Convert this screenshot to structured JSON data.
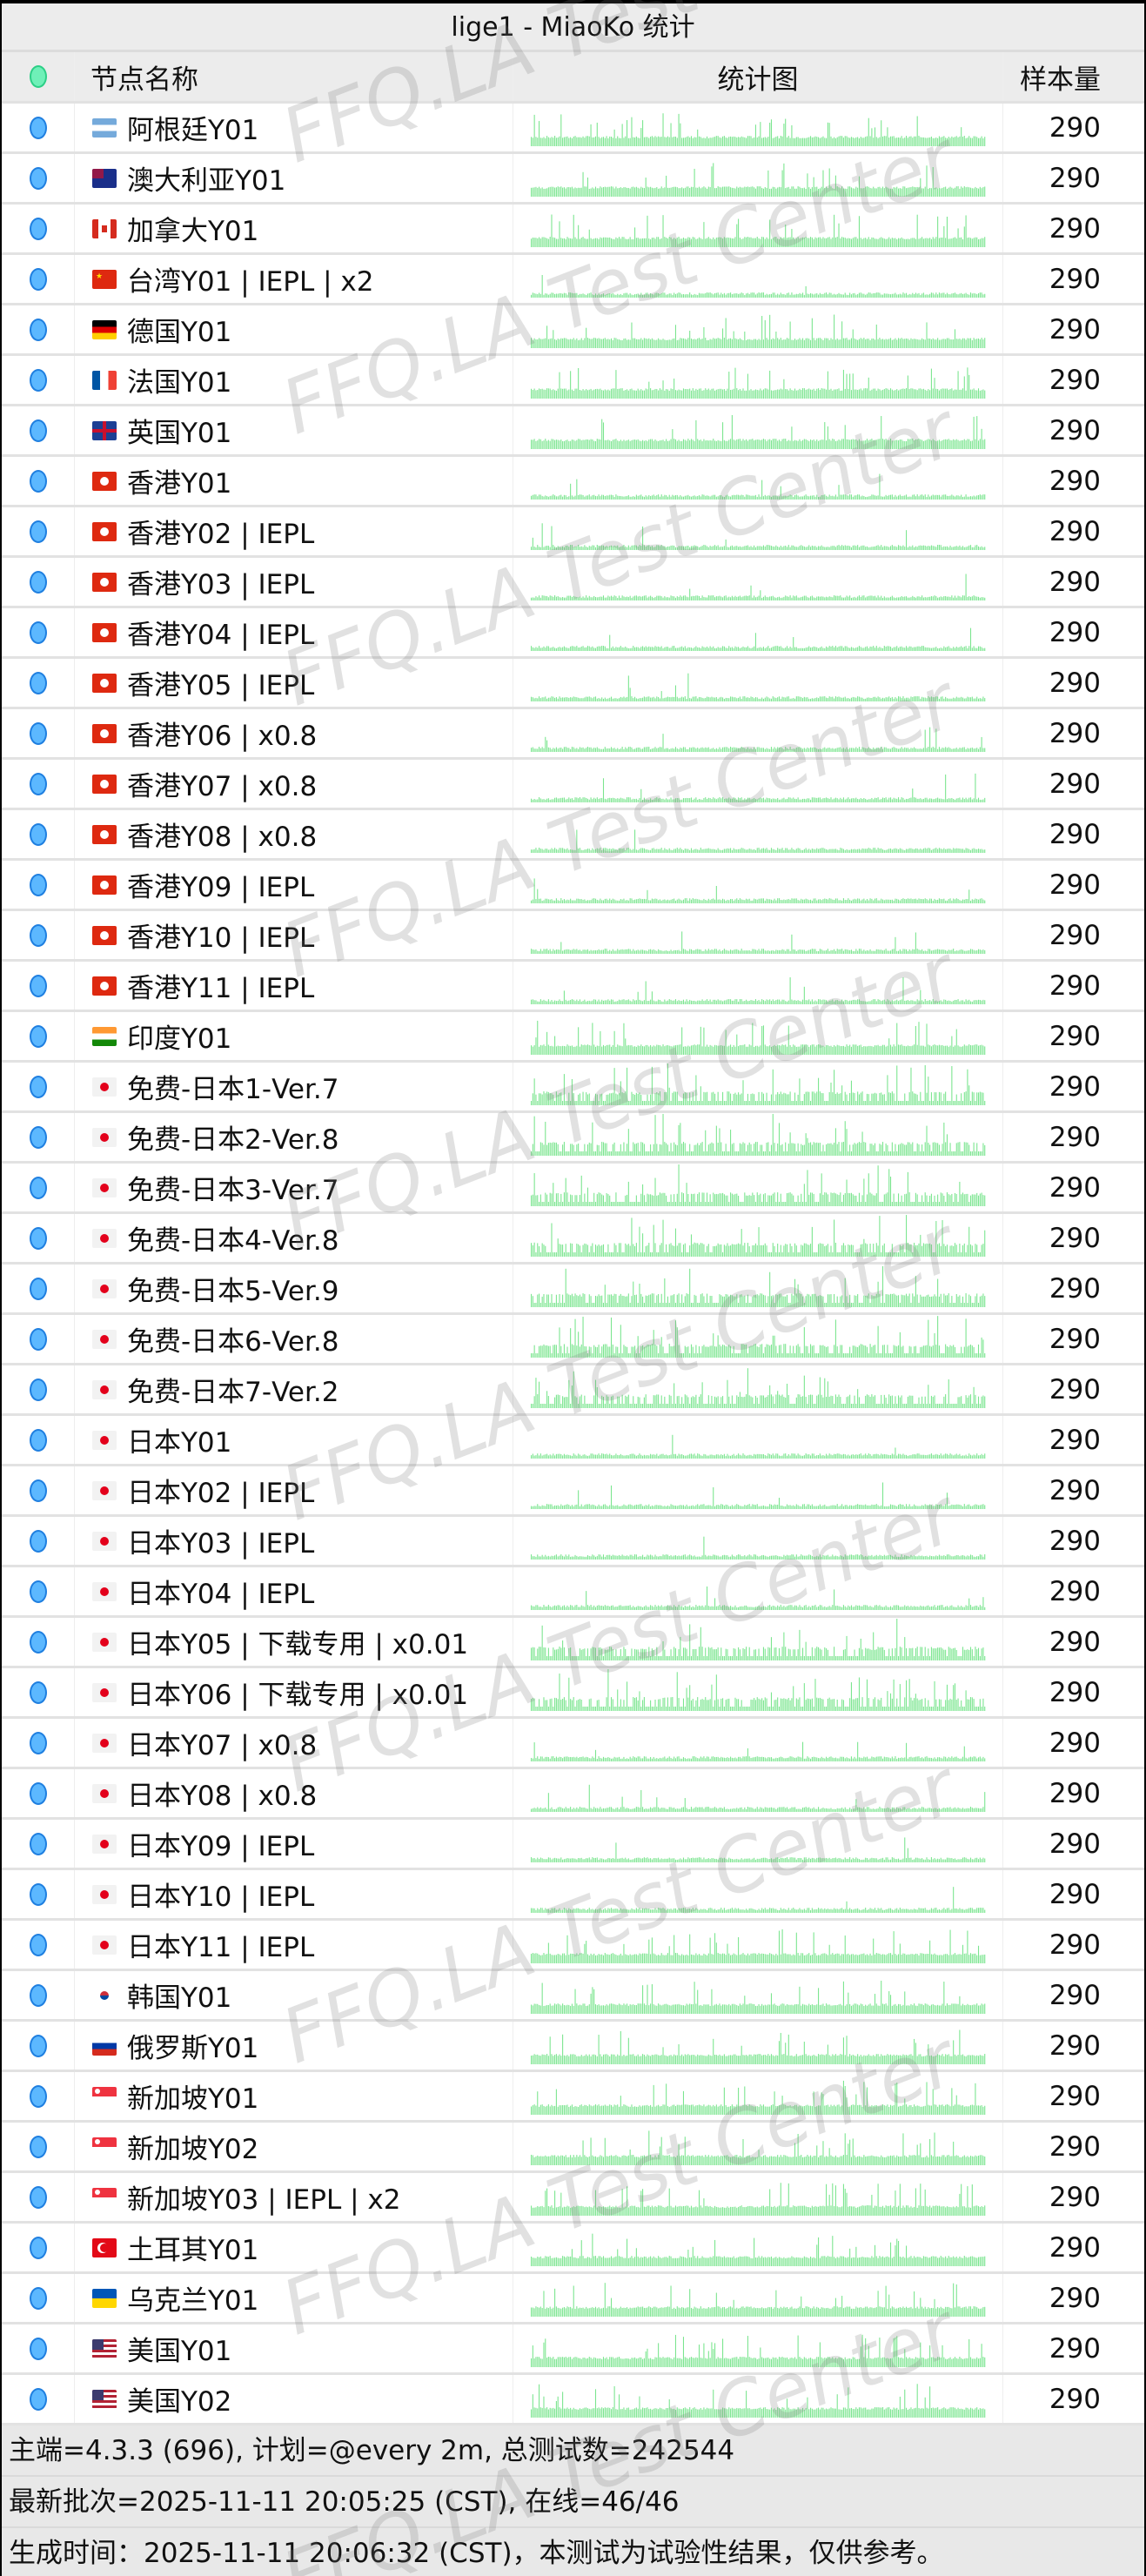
{
  "title": "lige1 - MiaoKo 统计",
  "header": {
    "name": "节点名称",
    "chart": "统计图",
    "count": "样本量"
  },
  "colors": {
    "status_online": "#5cb8ff",
    "header_dot": "#6ff0b8",
    "spark": "#7be58f"
  },
  "watermark": "FFQ.LA Test Center",
  "rows": [
    {
      "flag": "ar",
      "name": "阿根廷Y01",
      "count": "290"
    },
    {
      "flag": "au",
      "name": "澳大利亚Y01",
      "count": "290"
    },
    {
      "flag": "ca",
      "name": "加拿大Y01",
      "count": "290"
    },
    {
      "flag": "cn",
      "name": "台湾Y01 | IEPL | x2",
      "count": "290"
    },
    {
      "flag": "de",
      "name": "德国Y01",
      "count": "290"
    },
    {
      "flag": "fr",
      "name": "法国Y01",
      "count": "290"
    },
    {
      "flag": "gb",
      "name": "英国Y01",
      "count": "290"
    },
    {
      "flag": "hk",
      "name": "香港Y01",
      "count": "290"
    },
    {
      "flag": "hk",
      "name": "香港Y02 | IEPL",
      "count": "290"
    },
    {
      "flag": "hk",
      "name": "香港Y03 | IEPL",
      "count": "290"
    },
    {
      "flag": "hk",
      "name": "香港Y04 | IEPL",
      "count": "290"
    },
    {
      "flag": "hk",
      "name": "香港Y05 | IEPL",
      "count": "290"
    },
    {
      "flag": "hk",
      "name": "香港Y06 | x0.8",
      "count": "290"
    },
    {
      "flag": "hk",
      "name": "香港Y07 | x0.8",
      "count": "290"
    },
    {
      "flag": "hk",
      "name": "香港Y08 | x0.8",
      "count": "290"
    },
    {
      "flag": "hk",
      "name": "香港Y09 | IEPL",
      "count": "290"
    },
    {
      "flag": "hk",
      "name": "香港Y10 | IEPL",
      "count": "290"
    },
    {
      "flag": "hk",
      "name": "香港Y11 | IEPL",
      "count": "290"
    },
    {
      "flag": "in",
      "name": "印度Y01",
      "count": "290"
    },
    {
      "flag": "jp",
      "name": "免费-日本1-Ver.7",
      "count": "290"
    },
    {
      "flag": "jp",
      "name": "免费-日本2-Ver.8",
      "count": "290"
    },
    {
      "flag": "jp",
      "name": "免费-日本3-Ver.7",
      "count": "290"
    },
    {
      "flag": "jp",
      "name": "免费-日本4-Ver.8",
      "count": "290"
    },
    {
      "flag": "jp",
      "name": "免费-日本5-Ver.9",
      "count": "290"
    },
    {
      "flag": "jp",
      "name": "免费-日本6-Ver.8",
      "count": "290"
    },
    {
      "flag": "jp",
      "name": "免费-日本7-Ver.2",
      "count": "290"
    },
    {
      "flag": "jp",
      "name": "日本Y01",
      "count": "290"
    },
    {
      "flag": "jp",
      "name": "日本Y02 | IEPL",
      "count": "290"
    },
    {
      "flag": "jp",
      "name": "日本Y03 | IEPL",
      "count": "290"
    },
    {
      "flag": "jp",
      "name": "日本Y04 | IEPL",
      "count": "290"
    },
    {
      "flag": "jp",
      "name": "日本Y05 | 下载专用 | x0.01",
      "count": "290"
    },
    {
      "flag": "jp",
      "name": "日本Y06 | 下载专用 | x0.01",
      "count": "290"
    },
    {
      "flag": "jp",
      "name": "日本Y07 | x0.8",
      "count": "290"
    },
    {
      "flag": "jp",
      "name": "日本Y08 | x0.8",
      "count": "290"
    },
    {
      "flag": "jp",
      "name": "日本Y09 | IEPL",
      "count": "290"
    },
    {
      "flag": "jp",
      "name": "日本Y10 | IEPL",
      "count": "290"
    },
    {
      "flag": "jp",
      "name": "日本Y11 | IEPL",
      "count": "290"
    },
    {
      "flag": "kr",
      "name": "韩国Y01",
      "count": "290"
    },
    {
      "flag": "ru",
      "name": "俄罗斯Y01",
      "count": "290"
    },
    {
      "flag": "sg",
      "name": "新加坡Y01",
      "count": "290"
    },
    {
      "flag": "sg",
      "name": "新加坡Y02",
      "count": "290"
    },
    {
      "flag": "sg",
      "name": "新加坡Y03 | IEPL | x2",
      "count": "290"
    },
    {
      "flag": "tr",
      "name": "土耳其Y01",
      "count": "290"
    },
    {
      "flag": "ua",
      "name": "乌克兰Y01",
      "count": "290"
    },
    {
      "flag": "us",
      "name": "美国Y01",
      "count": "290"
    },
    {
      "flag": "us",
      "name": "美国Y02",
      "count": "290"
    }
  ],
  "footer": {
    "line1": "主端=4.3.3 (696), 计划=@every 2m, 总测试数=242544",
    "line2": "最新批次=2025-11-11 20:05:25 (CST), 在线=46/46",
    "line3": "生成时间：2025-11-11 20:06:32 (CST)，本测试为试验性结果，仅供参考。"
  }
}
